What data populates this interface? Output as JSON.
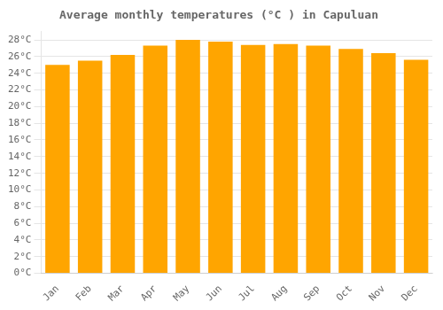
{
  "chart_data": {
    "type": "bar",
    "title": "Average monthly temperatures (°C ) in Capuluan",
    "categories": [
      "Jan",
      "Feb",
      "Mar",
      "Apr",
      "May",
      "Jun",
      "Jul",
      "Aug",
      "Sep",
      "Oct",
      "Nov",
      "Dec"
    ],
    "values": [
      25.0,
      25.5,
      26.2,
      27.3,
      28.0,
      27.8,
      27.4,
      27.5,
      27.3,
      26.9,
      26.4,
      25.6
    ],
    "color": "#FFA500",
    "ylim": [
      0,
      29
    ],
    "yticks": [
      {
        "value": 0,
        "label": "0°C"
      },
      {
        "value": 2,
        "label": "2°C"
      },
      {
        "value": 4,
        "label": "4°C"
      },
      {
        "value": 6,
        "label": "6°C"
      },
      {
        "value": 8,
        "label": "8°C"
      },
      {
        "value": 10,
        "label": "10°C"
      },
      {
        "value": 12,
        "label": "12°C"
      },
      {
        "value": 14,
        "label": "14°C"
      },
      {
        "value": 16,
        "label": "16°C"
      },
      {
        "value": 18,
        "label": "18°C"
      },
      {
        "value": 20,
        "label": "20°C"
      },
      {
        "value": 22,
        "label": "22°C"
      },
      {
        "value": 24,
        "label": "24°C"
      },
      {
        "value": 26,
        "label": "26°C"
      },
      {
        "value": 28,
        "label": "28°C"
      }
    ],
    "grid": true
  }
}
